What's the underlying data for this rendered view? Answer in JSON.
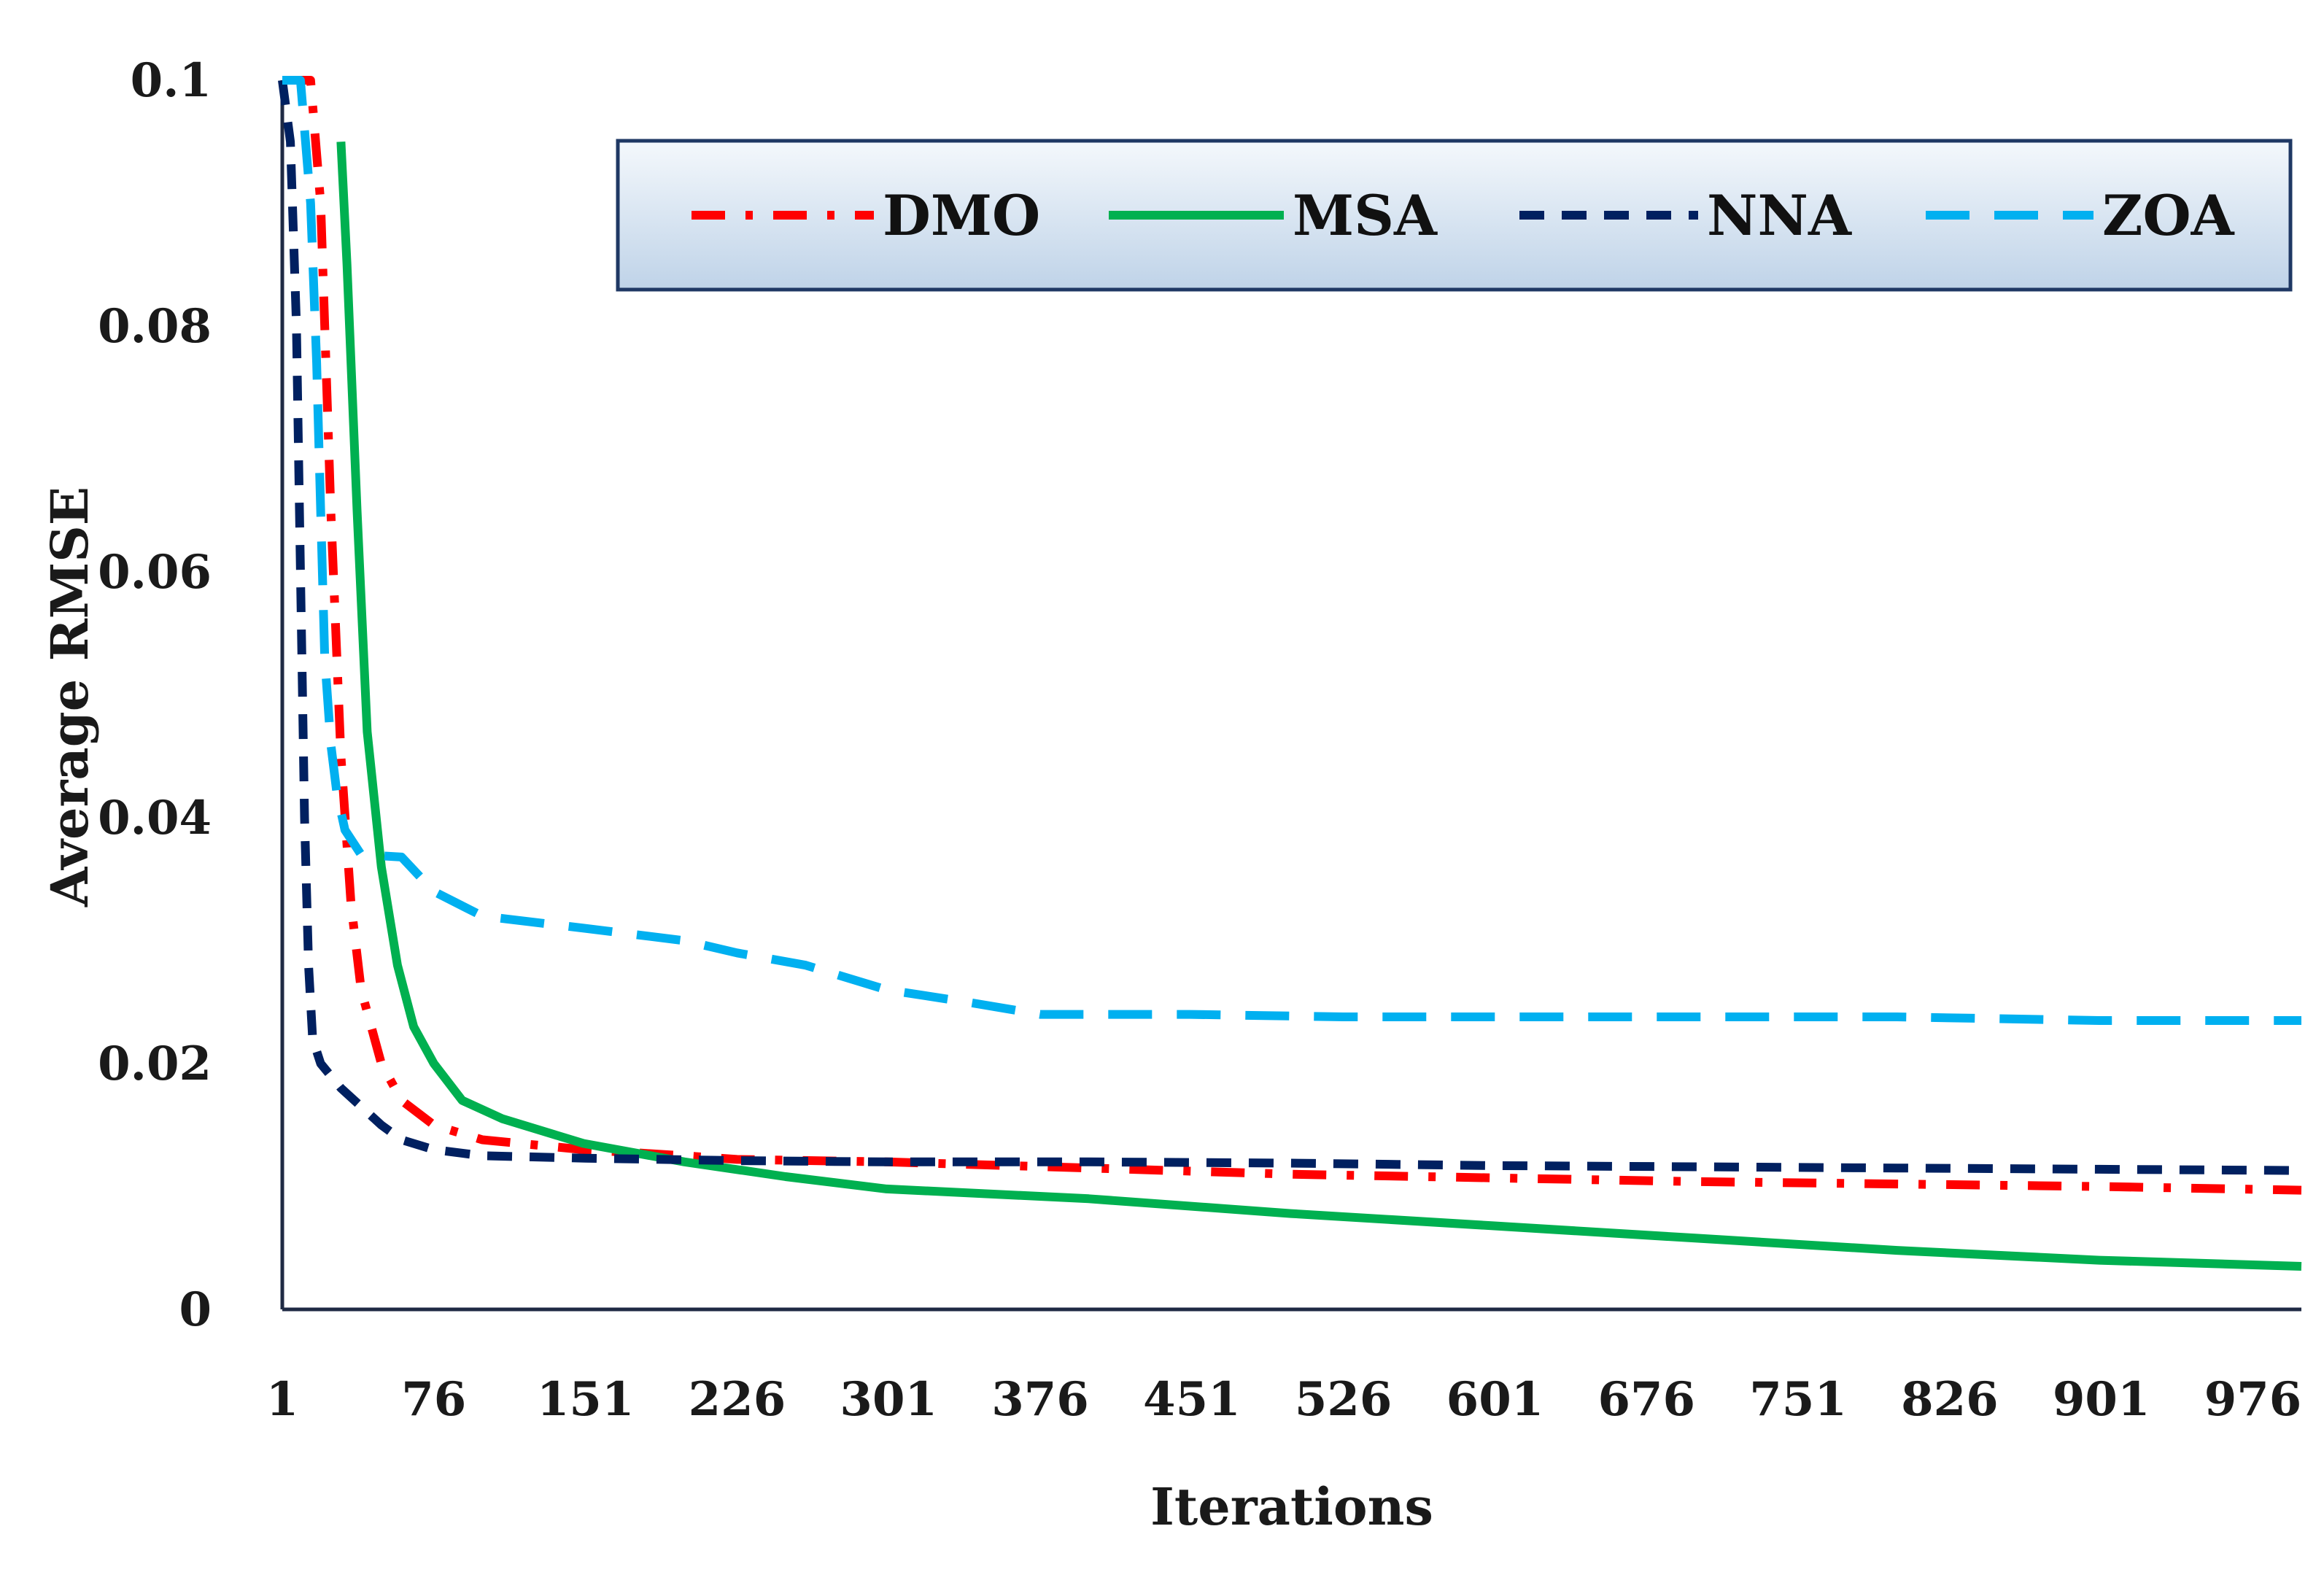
{
  "chart_data": {
    "type": "line",
    "title": "",
    "xlabel": "Iterations",
    "ylabel": "Average RMSE",
    "xlim": [
      1,
      1000
    ],
    "ylim": [
      0,
      0.1
    ],
    "x_ticks": [
      "1",
      "76",
      "151",
      "226",
      "301",
      "376",
      "451",
      "526",
      "601",
      "676",
      "751",
      "826",
      "901",
      "976"
    ],
    "y_ticks": [
      "0",
      "0.02",
      "0.04",
      "0.06",
      "0.08",
      "0.1"
    ],
    "legend_position": "top-right",
    "series": [
      {
        "name": "DMO",
        "color": "#ff0000",
        "style": "dash-dot",
        "x": [
          1,
          15,
          20,
          25,
          30,
          35,
          40,
          50,
          60,
          76,
          100,
          150,
          200,
          226,
          300,
          400,
          500,
          600,
          700,
          800,
          900,
          1000
        ],
        "y": [
          0.1,
          0.1,
          0.09,
          0.065,
          0.045,
          0.033,
          0.026,
          0.02,
          0.017,
          0.015,
          0.0138,
          0.013,
          0.0125,
          0.0122,
          0.012,
          0.0115,
          0.011,
          0.0107,
          0.0104,
          0.0102,
          0.01,
          0.0097
        ]
      },
      {
        "name": "MSA",
        "color": "#00b050",
        "style": "solid",
        "x": [
          30,
          33,
          38,
          43,
          50,
          58,
          66,
          76,
          90,
          110,
          150,
          200,
          250,
          300,
          400,
          500,
          600,
          700,
          800,
          900,
          1000
        ],
        "y": [
          0.095,
          0.085,
          0.065,
          0.047,
          0.036,
          0.028,
          0.023,
          0.02,
          0.017,
          0.0155,
          0.0135,
          0.012,
          0.0108,
          0.0098,
          0.009,
          0.0078,
          0.0068,
          0.0058,
          0.0048,
          0.004,
          0.0035
        ]
      },
      {
        "name": "NNA",
        "color": "#002060",
        "style": "dash",
        "x": [
          1,
          5,
          8,
          10,
          12,
          14,
          16,
          20,
          30,
          40,
          50,
          60,
          76,
          100,
          151,
          226,
          300,
          400,
          500,
          600,
          700,
          800,
          900,
          1000
        ],
        "y": [
          0.1,
          0.095,
          0.08,
          0.06,
          0.04,
          0.028,
          0.022,
          0.02,
          0.018,
          0.0165,
          0.015,
          0.0138,
          0.013,
          0.0125,
          0.0123,
          0.0121,
          0.012,
          0.012,
          0.0119,
          0.0117,
          0.0116,
          0.0115,
          0.0114,
          0.0113
        ]
      },
      {
        "name": "ZOA",
        "color": "#00b0f0",
        "style": "long-dash",
        "x": [
          1,
          10,
          15,
          18,
          20,
          22,
          25,
          28,
          32,
          40,
          60,
          76,
          100,
          151,
          200,
          226,
          260,
          300,
          340,
          376,
          450,
          526,
          600,
          700,
          800,
          900,
          1000
        ],
        "y": [
          0.1,
          0.1,
          0.09,
          0.077,
          0.065,
          0.053,
          0.046,
          0.042,
          0.039,
          0.037,
          0.0368,
          0.034,
          0.032,
          0.031,
          0.03,
          0.029,
          0.028,
          0.026,
          0.025,
          0.024,
          0.024,
          0.0238,
          0.0238,
          0.0238,
          0.0238,
          0.0235,
          0.0235
        ]
      }
    ]
  }
}
